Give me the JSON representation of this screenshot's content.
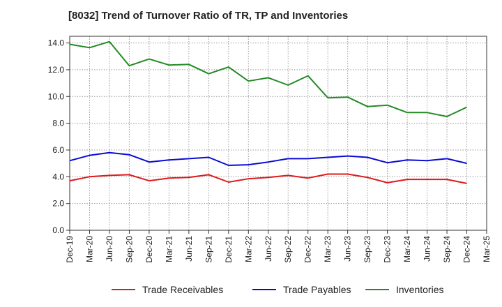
{
  "chart_data": {
    "type": "line",
    "title": "[8032]  Trend of Turnover Ratio of TR, TP and Inventories",
    "xlabel": "",
    "ylabel": "",
    "x": [
      "Dec-19",
      "Mar-20",
      "Jun-20",
      "Sep-20",
      "Dec-20",
      "Mar-21",
      "Jun-21",
      "Sep-21",
      "Dec-21",
      "Mar-22",
      "Jun-22",
      "Sep-22",
      "Dec-22",
      "Mar-23",
      "Jun-23",
      "Sep-23",
      "Dec-23",
      "Mar-24",
      "Jun-24",
      "Sep-24",
      "Dec-24"
    ],
    "x_tick_labels": [
      "Dec-19",
      "Mar-20",
      "Jun-20",
      "Sep-20",
      "Dec-20",
      "Mar-21",
      "Jun-21",
      "Sep-21",
      "Dec-21",
      "Mar-22",
      "Jun-22",
      "Sep-22",
      "Dec-22",
      "Mar-23",
      "Jun-23",
      "Sep-23",
      "Dec-23",
      "Mar-24",
      "Jun-24",
      "Sep-24",
      "Dec-24",
      "Mar-25"
    ],
    "y_tick_labels": [
      "0.0",
      "2.0",
      "4.0",
      "6.0",
      "8.0",
      "10.0",
      "12.0",
      "14.0"
    ],
    "ylim": [
      0,
      14.5
    ],
    "grid": true,
    "legend_position": "bottom",
    "series": [
      {
        "name": "Trade Receivables",
        "color": "#e0191c",
        "values": [
          3.7,
          4.0,
          4.1,
          4.15,
          3.7,
          3.9,
          3.95,
          4.15,
          3.6,
          3.85,
          3.95,
          4.1,
          3.9,
          4.2,
          4.2,
          3.95,
          3.55,
          3.8,
          3.8,
          3.8,
          3.5
        ]
      },
      {
        "name": "Trade Payables",
        "color": "#0a0ad6",
        "values": [
          5.2,
          5.6,
          5.8,
          5.65,
          5.1,
          5.25,
          5.35,
          5.45,
          4.85,
          4.9,
          5.1,
          5.35,
          5.35,
          5.45,
          5.55,
          5.45,
          5.05,
          5.25,
          5.2,
          5.35,
          5.0
        ]
      },
      {
        "name": "Inventories",
        "color": "#238a23",
        "values": [
          13.9,
          13.65,
          14.1,
          12.3,
          12.8,
          12.35,
          12.4,
          11.7,
          12.2,
          11.15,
          11.4,
          10.85,
          11.55,
          9.9,
          9.95,
          9.25,
          9.35,
          8.8,
          8.8,
          8.5,
          9.2
        ]
      }
    ]
  }
}
